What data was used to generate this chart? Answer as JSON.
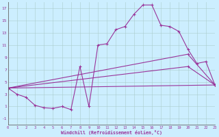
{
  "xlabel": "Windchill (Refroidissement éolien,°C)",
  "bg_color": "#cceeff",
  "grid_color": "#aacccc",
  "line_color": "#993399",
  "xlim": [
    0,
    23
  ],
  "ylim": [
    -2,
    18
  ],
  "xticks": [
    0,
    1,
    2,
    3,
    4,
    5,
    6,
    7,
    8,
    9,
    10,
    11,
    12,
    13,
    14,
    15,
    16,
    17,
    18,
    19,
    20,
    21,
    22,
    23
  ],
  "yticks": [
    -1,
    1,
    3,
    5,
    7,
    9,
    11,
    13,
    15,
    17
  ],
  "series_main": [
    [
      0,
      4.0
    ],
    [
      1,
      3.0
    ],
    [
      2,
      2.5
    ],
    [
      3,
      1.2
    ],
    [
      4,
      0.8
    ],
    [
      5,
      0.7
    ],
    [
      6,
      1.0
    ],
    [
      7,
      0.5
    ],
    [
      8,
      7.5
    ],
    [
      9,
      1.0
    ],
    [
      10,
      11.0
    ],
    [
      11,
      11.2
    ],
    [
      12,
      13.5
    ],
    [
      13,
      14.0
    ],
    [
      14,
      16.0
    ],
    [
      15,
      17.5
    ],
    [
      16,
      17.5
    ],
    [
      17,
      14.2
    ],
    [
      18,
      14.0
    ],
    [
      19,
      13.2
    ],
    [
      20,
      10.3
    ],
    [
      21,
      8.0
    ],
    [
      22,
      8.3
    ],
    [
      23,
      4.5
    ]
  ],
  "series2": [
    [
      0,
      4.0
    ],
    [
      23,
      4.5
    ]
  ],
  "series3": [
    [
      0,
      4.0
    ],
    [
      20,
      9.5
    ],
    [
      23,
      4.5
    ]
  ],
  "series4": [
    [
      0,
      4.0
    ],
    [
      20,
      7.5
    ],
    [
      23,
      4.5
    ]
  ]
}
